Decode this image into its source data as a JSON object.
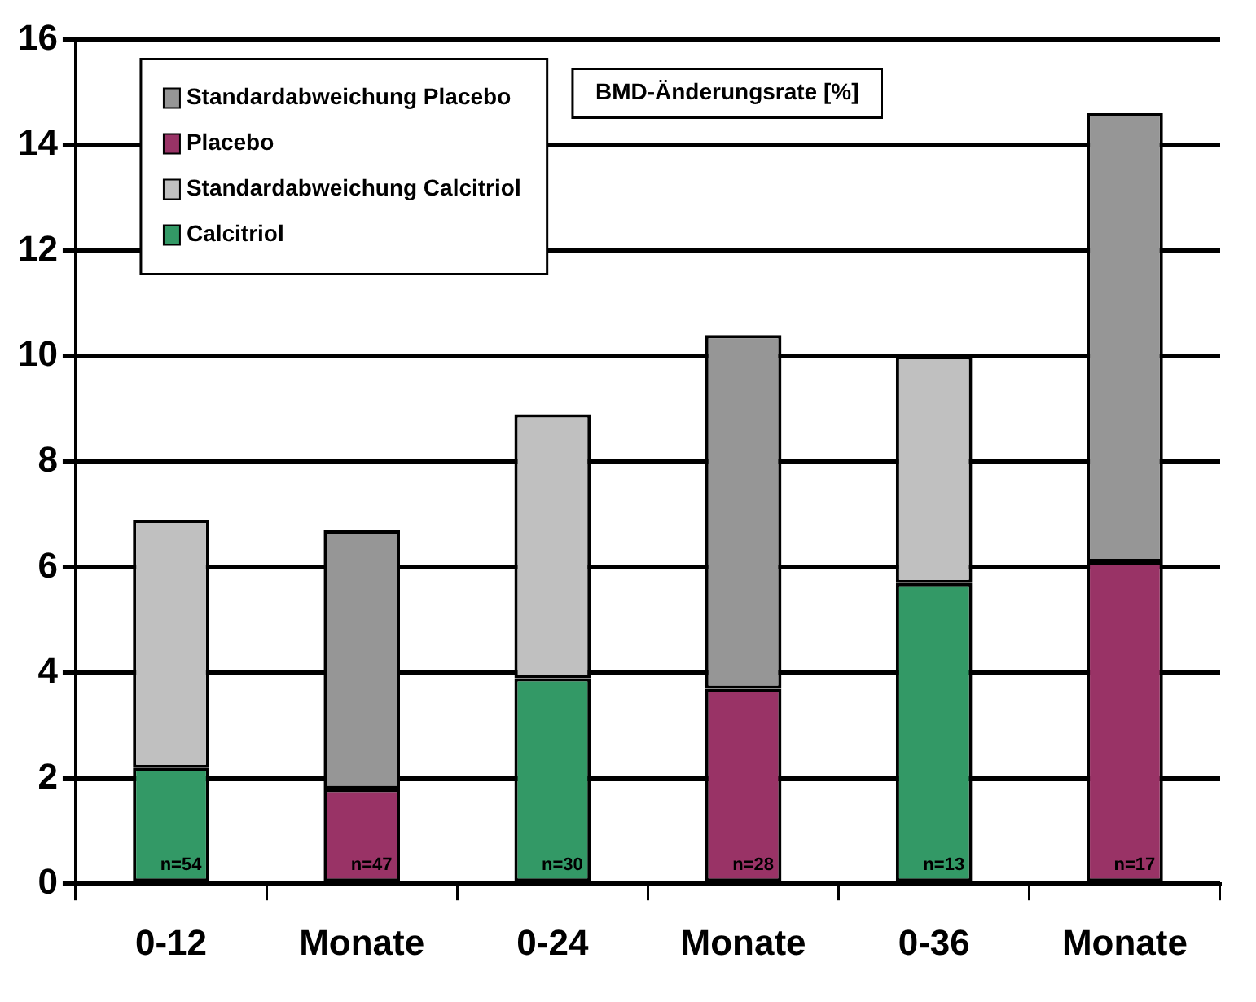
{
  "chart_data": {
    "type": "bar",
    "stacked": true,
    "categories": [
      "0-12",
      "Monate",
      "0-24",
      "Monate",
      "0-36",
      "Monate"
    ],
    "series": [
      {
        "name": "Calcitriol",
        "color": "#339966",
        "values": [
          2.2,
          null,
          3.9,
          null,
          5.7,
          null
        ]
      },
      {
        "name": "Standardabweichung Calcitriol",
        "color": "#c0c0c0",
        "values": [
          4.7,
          null,
          5.0,
          null,
          4.3,
          null
        ]
      },
      {
        "name": "Placebo",
        "color": "#993366",
        "values": [
          null,
          1.8,
          null,
          3.7,
          null,
          6.1
        ]
      },
      {
        "name": "Standardabweichung Placebo",
        "color": "#969696",
        "values": [
          null,
          4.9,
          null,
          6.7,
          null,
          8.5
        ]
      }
    ],
    "ylim": [
      0,
      16
    ],
    "yticks": [
      0,
      2,
      4,
      6,
      8,
      10,
      12,
      14,
      16
    ],
    "grid": "y",
    "legend": "top left",
    "annotations": [
      "BMD-Änderungsrate [%]",
      "n=54",
      "n=47",
      "n=30",
      "n=28",
      "n=13",
      "n=17"
    ]
  }
}
